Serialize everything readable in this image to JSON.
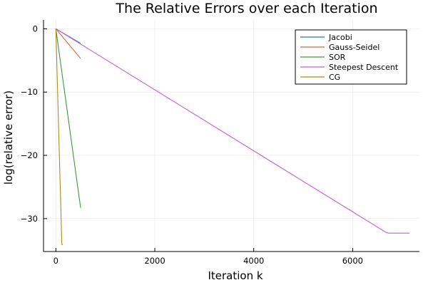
{
  "chart_data": {
    "type": "line",
    "title": "The Relative Errors over each Iteration",
    "xlabel": "Iteration k",
    "ylabel": "log(relative error)",
    "xlim": [
      -250,
      7350
    ],
    "ylim": [
      -35.2,
      1.4
    ],
    "xticks": [
      0,
      2000,
      4000,
      6000
    ],
    "yticks": [
      0,
      -10,
      -20,
      -30
    ],
    "xtick_labels": [
      "0",
      "2000",
      "4000",
      "6000"
    ],
    "ytick_labels": [
      "0",
      "−10",
      "−20",
      "−30"
    ],
    "grid": true,
    "legend_position": "top-right",
    "series": [
      {
        "name": "Jacobi",
        "color": "#1f77d8",
        "x": [
          0,
          500
        ],
        "y": [
          0,
          -2.3
        ]
      },
      {
        "name": "Gauss-Seidel",
        "color": "#e2643c",
        "x": [
          0,
          500
        ],
        "y": [
          0,
          -4.7
        ]
      },
      {
        "name": "SOR",
        "color": "#3a9a3a",
        "x": [
          0,
          500
        ],
        "y": [
          0,
          -28.3
        ]
      },
      {
        "name": "Steepest Descent",
        "color": "#c25fd4",
        "x": [
          0,
          6680,
          6720,
          7150
        ],
        "y": [
          0,
          -32.2,
          -32.3,
          -32.3
        ]
      },
      {
        "name": "CG",
        "color": "#b08a1a",
        "x": [
          0,
          120,
          140
        ],
        "y": [
          0,
          -34.1,
          -34.1
        ]
      }
    ]
  }
}
